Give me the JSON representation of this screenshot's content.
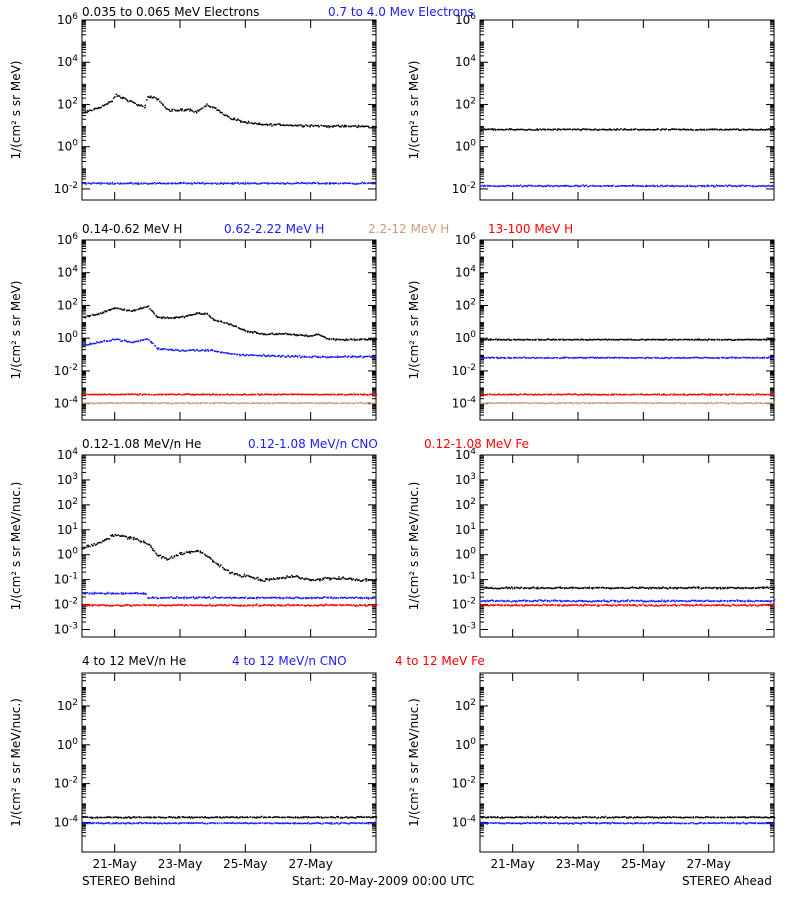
{
  "colors": {
    "black": "#000000",
    "blue": "#1a1aff",
    "tan": "#d19a7a",
    "red": "#ff0000",
    "background": "#ffffff"
  },
  "rows": [
    {
      "titles": [
        {
          "text": "0.035 to 0.065 MeV Electrons",
          "color": "#000000"
        },
        {
          "text": "0.7 to 4.0 Mev Electrons",
          "color": "#1a1aff"
        }
      ]
    },
    {
      "titles": [
        {
          "text": "0.14-0.62 MeV H",
          "color": "#000000"
        },
        {
          "text": "0.62-2.22 MeV H",
          "color": "#1a1aff"
        },
        {
          "text": "2.2-12 MeV H",
          "color": "#d19a7a"
        },
        {
          "text": "13-100 MeV H",
          "color": "#ff0000"
        }
      ]
    },
    {
      "titles": [
        {
          "text": "0.12-1.08 MeV/n He",
          "color": "#000000"
        },
        {
          "text": "0.12-1.08 MeV/n CNO",
          "color": "#1a1aff"
        },
        {
          "text": "0.12-1.08 MeV Fe",
          "color": "#ff0000"
        }
      ]
    },
    {
      "titles": [
        {
          "text": "4 to 12 MeV/n He",
          "color": "#000000"
        },
        {
          "text": "4 to 12 MeV/n CNO",
          "color": "#1a1aff"
        },
        {
          "text": "4 to 12 MeV Fe",
          "color": "#ff0000"
        }
      ]
    }
  ],
  "footer": {
    "left": "STEREO Behind",
    "center": "Start: 20-May-2009 00:00 UTC",
    "right": "STEREO Ahead"
  },
  "chart_data": [
    {
      "type": "scatter",
      "panel": "row1-left",
      "ylabel": "1/(cm² s sr MeV)",
      "scale": "log",
      "ylim": [
        0.003,
        1000000
      ],
      "ytick_exponents": [
        -2,
        0,
        2,
        4,
        6
      ],
      "xticks": [
        "21-May",
        "23-May",
        "25-May",
        "27-May"
      ],
      "series": [
        {
          "name": "0.035 to 0.065 MeV Electrons",
          "color": "#000000",
          "x": [
            0,
            0.3,
            0.6,
            0.9,
            1.0,
            1.3,
            1.6,
            1.9,
            2.0,
            2.3,
            2.6,
            2.9,
            3.2,
            3.5,
            3.8,
            4.0,
            4.5,
            5.0,
            5.5,
            6.0,
            6.5,
            7.0,
            7.5,
            8.0,
            8.5,
            9.0
          ],
          "y": [
            40,
            60,
            90,
            150,
            300,
            200,
            120,
            80,
            250,
            200,
            60,
            55,
            65,
            50,
            100,
            80,
            25,
            15,
            12,
            12,
            11,
            11,
            10,
            10,
            10,
            9
          ]
        },
        {
          "name": "0.7 to 4.0 Mev Electrons",
          "color": "#1a1aff",
          "x": [
            0,
            9
          ],
          "y": [
            0.02,
            0.02
          ]
        }
      ]
    },
    {
      "type": "scatter",
      "panel": "row1-right",
      "ylabel": "1/(cm² s sr MeV)",
      "scale": "log",
      "ylim": [
        0.003,
        1000000
      ],
      "ytick_exponents": [
        -2,
        0,
        2,
        4,
        6
      ],
      "xticks": [
        "21-May",
        "23-May",
        "25-May",
        "27-May"
      ],
      "series": [
        {
          "name": "0.035 to 0.065 MeV Electrons",
          "color": "#000000",
          "x": [
            0,
            9
          ],
          "y": [
            7,
            7
          ]
        },
        {
          "name": "0.7 to 4.0 Mev Electrons",
          "color": "#1a1aff",
          "x": [
            0,
            9
          ],
          "y": [
            0.015,
            0.015
          ]
        }
      ]
    },
    {
      "type": "scatter",
      "panel": "row2-left",
      "ylabel": "1/(cm² s sr MeV)",
      "scale": "log",
      "ylim": [
        1e-05,
        1000000
      ],
      "ytick_exponents": [
        -4,
        -2,
        0,
        2,
        4,
        6
      ],
      "xticks": [
        "21-May",
        "23-May",
        "25-May",
        "27-May"
      ],
      "series": [
        {
          "name": "0.14-0.62 MeV H",
          "color": "#000000",
          "x": [
            0,
            0.5,
            1.0,
            1.5,
            2.0,
            2.3,
            2.6,
            3.0,
            3.5,
            3.8,
            4.0,
            4.5,
            5.0,
            5.5,
            6.0,
            6.5,
            7.0,
            7.2,
            7.5,
            8.0,
            8.5,
            9.0
          ],
          "y": [
            20,
            35,
            80,
            50,
            100,
            20,
            20,
            20,
            35,
            35,
            15,
            8,
            3,
            2,
            2,
            1.8,
            1.5,
            2,
            1,
            0.9,
            0.9,
            1
          ]
        },
        {
          "name": "0.62-2.22 MeV H",
          "color": "#1a1aff",
          "x": [
            0,
            0.5,
            1.0,
            1.5,
            2.0,
            2.3,
            3.0,
            4.0,
            4.5,
            5.0,
            6.0,
            7.0,
            8.0,
            9.0
          ],
          "y": [
            0.4,
            0.6,
            1.0,
            0.6,
            1.0,
            0.25,
            0.2,
            0.2,
            0.12,
            0.1,
            0.09,
            0.08,
            0.08,
            0.08
          ]
        },
        {
          "name": "2.2-12 MeV H",
          "color": "#d19a7a",
          "x": [
            0,
            9
          ],
          "y": [
            0.00012,
            0.00012
          ]
        },
        {
          "name": "13-100 MeV H",
          "color": "#ff0000",
          "x": [
            0,
            9
          ],
          "y": [
            0.0004,
            0.0004
          ]
        }
      ]
    },
    {
      "type": "scatter",
      "panel": "row2-right",
      "ylabel": "1/(cm² s sr MeV)",
      "scale": "log",
      "ylim": [
        1e-05,
        1000000
      ],
      "ytick_exponents": [
        -4,
        -2,
        0,
        2,
        4,
        6
      ],
      "xticks": [
        "21-May",
        "23-May",
        "25-May",
        "27-May"
      ],
      "series": [
        {
          "name": "0.14-0.62 MeV H",
          "color": "#000000",
          "x": [
            0,
            9
          ],
          "y": [
            0.9,
            0.9
          ]
        },
        {
          "name": "0.62-2.22 MeV H",
          "color": "#1a1aff",
          "x": [
            0,
            9
          ],
          "y": [
            0.07,
            0.07
          ]
        },
        {
          "name": "2.2-12 MeV H",
          "color": "#d19a7a",
          "x": [
            0,
            9
          ],
          "y": [
            0.00012,
            0.00012
          ]
        },
        {
          "name": "13-100 MeV H",
          "color": "#ff0000",
          "x": [
            0,
            9
          ],
          "y": [
            0.0004,
            0.0004
          ]
        }
      ]
    },
    {
      "type": "scatter",
      "panel": "row3-left",
      "ylabel": "1/(cm² s sr MeV/nuc.)",
      "scale": "log",
      "ylim": [
        0.0005,
        10000
      ],
      "ytick_exponents": [
        -3,
        -2,
        -1,
        0,
        1,
        2,
        3,
        4
      ],
      "xticks": [
        "21-May",
        "23-May",
        "25-May",
        "27-May"
      ],
      "series": [
        {
          "name": "0.12-1.08 MeV/n He",
          "color": "#000000",
          "x": [
            0,
            0.5,
            1.0,
            1.5,
            2.0,
            2.3,
            2.6,
            3.0,
            3.5,
            3.8,
            4.0,
            4.5,
            5.0,
            5.5,
            6.0,
            6.5,
            7.0,
            7.5,
            8.0,
            8.5,
            9.0
          ],
          "y": [
            2,
            3,
            7,
            5,
            3,
            1,
            0.7,
            1.2,
            1.5,
            1.0,
            0.6,
            0.2,
            0.15,
            0.1,
            0.12,
            0.15,
            0.1,
            0.12,
            0.12,
            0.1,
            0.1
          ]
        },
        {
          "name": "0.12-1.08 MeV/n CNO",
          "color": "#1a1aff",
          "x": [
            0,
            2.0,
            2.0,
            9
          ],
          "y": [
            0.03,
            0.03,
            0.02,
            0.02
          ]
        },
        {
          "name": "0.12-1.08 MeV Fe",
          "color": "#ff0000",
          "x": [
            0,
            9
          ],
          "y": [
            0.01,
            0.01
          ]
        }
      ]
    },
    {
      "type": "scatter",
      "panel": "row3-right",
      "ylabel": "1/(cm² s sr MeV/nuc.)",
      "scale": "log",
      "ylim": [
        0.0005,
        10000
      ],
      "ytick_exponents": [
        -3,
        -2,
        -1,
        0,
        1,
        2,
        3,
        4
      ],
      "xticks": [
        "21-May",
        "23-May",
        "25-May",
        "27-May"
      ],
      "series": [
        {
          "name": "0.12-1.08 MeV/n He",
          "color": "#000000",
          "x": [
            0,
            9
          ],
          "y": [
            0.05,
            0.05
          ]
        },
        {
          "name": "0.12-1.08 MeV/n CNO",
          "color": "#1a1aff",
          "x": [
            0,
            9
          ],
          "y": [
            0.015,
            0.015
          ]
        },
        {
          "name": "0.12-1.08 MeV Fe",
          "color": "#ff0000",
          "x": [
            0,
            9
          ],
          "y": [
            0.01,
            0.01
          ]
        }
      ]
    },
    {
      "type": "scatter",
      "panel": "row4-left",
      "ylabel": "1/(cm² s sr MeV/nuc.)",
      "scale": "log",
      "ylim": [
        3e-06,
        5000
      ],
      "ytick_exponents": [
        -4,
        -2,
        0,
        2
      ],
      "xticks": [
        "21-May",
        "23-May",
        "25-May",
        "27-May"
      ],
      "series": [
        {
          "name": "4 to 12 MeV/n He",
          "color": "#000000",
          "x": [
            0,
            9
          ],
          "y": [
            0.0002,
            0.0002
          ]
        },
        {
          "name": "4 to 12 MeV/n CNO",
          "color": "#1a1aff",
          "x": [
            0,
            9
          ],
          "y": [
            0.0001,
            0.0001
          ]
        }
      ]
    },
    {
      "type": "scatter",
      "panel": "row4-right",
      "ylabel": "1/(cm² s sr MeV/nuc.)",
      "scale": "log",
      "ylim": [
        3e-06,
        5000
      ],
      "ytick_exponents": [
        -4,
        -2,
        0,
        2
      ],
      "xticks": [
        "21-May",
        "23-May",
        "25-May",
        "27-May"
      ],
      "series": [
        {
          "name": "4 to 12 MeV/n He",
          "color": "#000000",
          "x": [
            0,
            9
          ],
          "y": [
            0.0002,
            0.0002
          ]
        },
        {
          "name": "4 to 12 MeV/n CNO",
          "color": "#1a1aff",
          "x": [
            0,
            9
          ],
          "y": [
            0.0001,
            0.0001
          ]
        }
      ]
    }
  ]
}
